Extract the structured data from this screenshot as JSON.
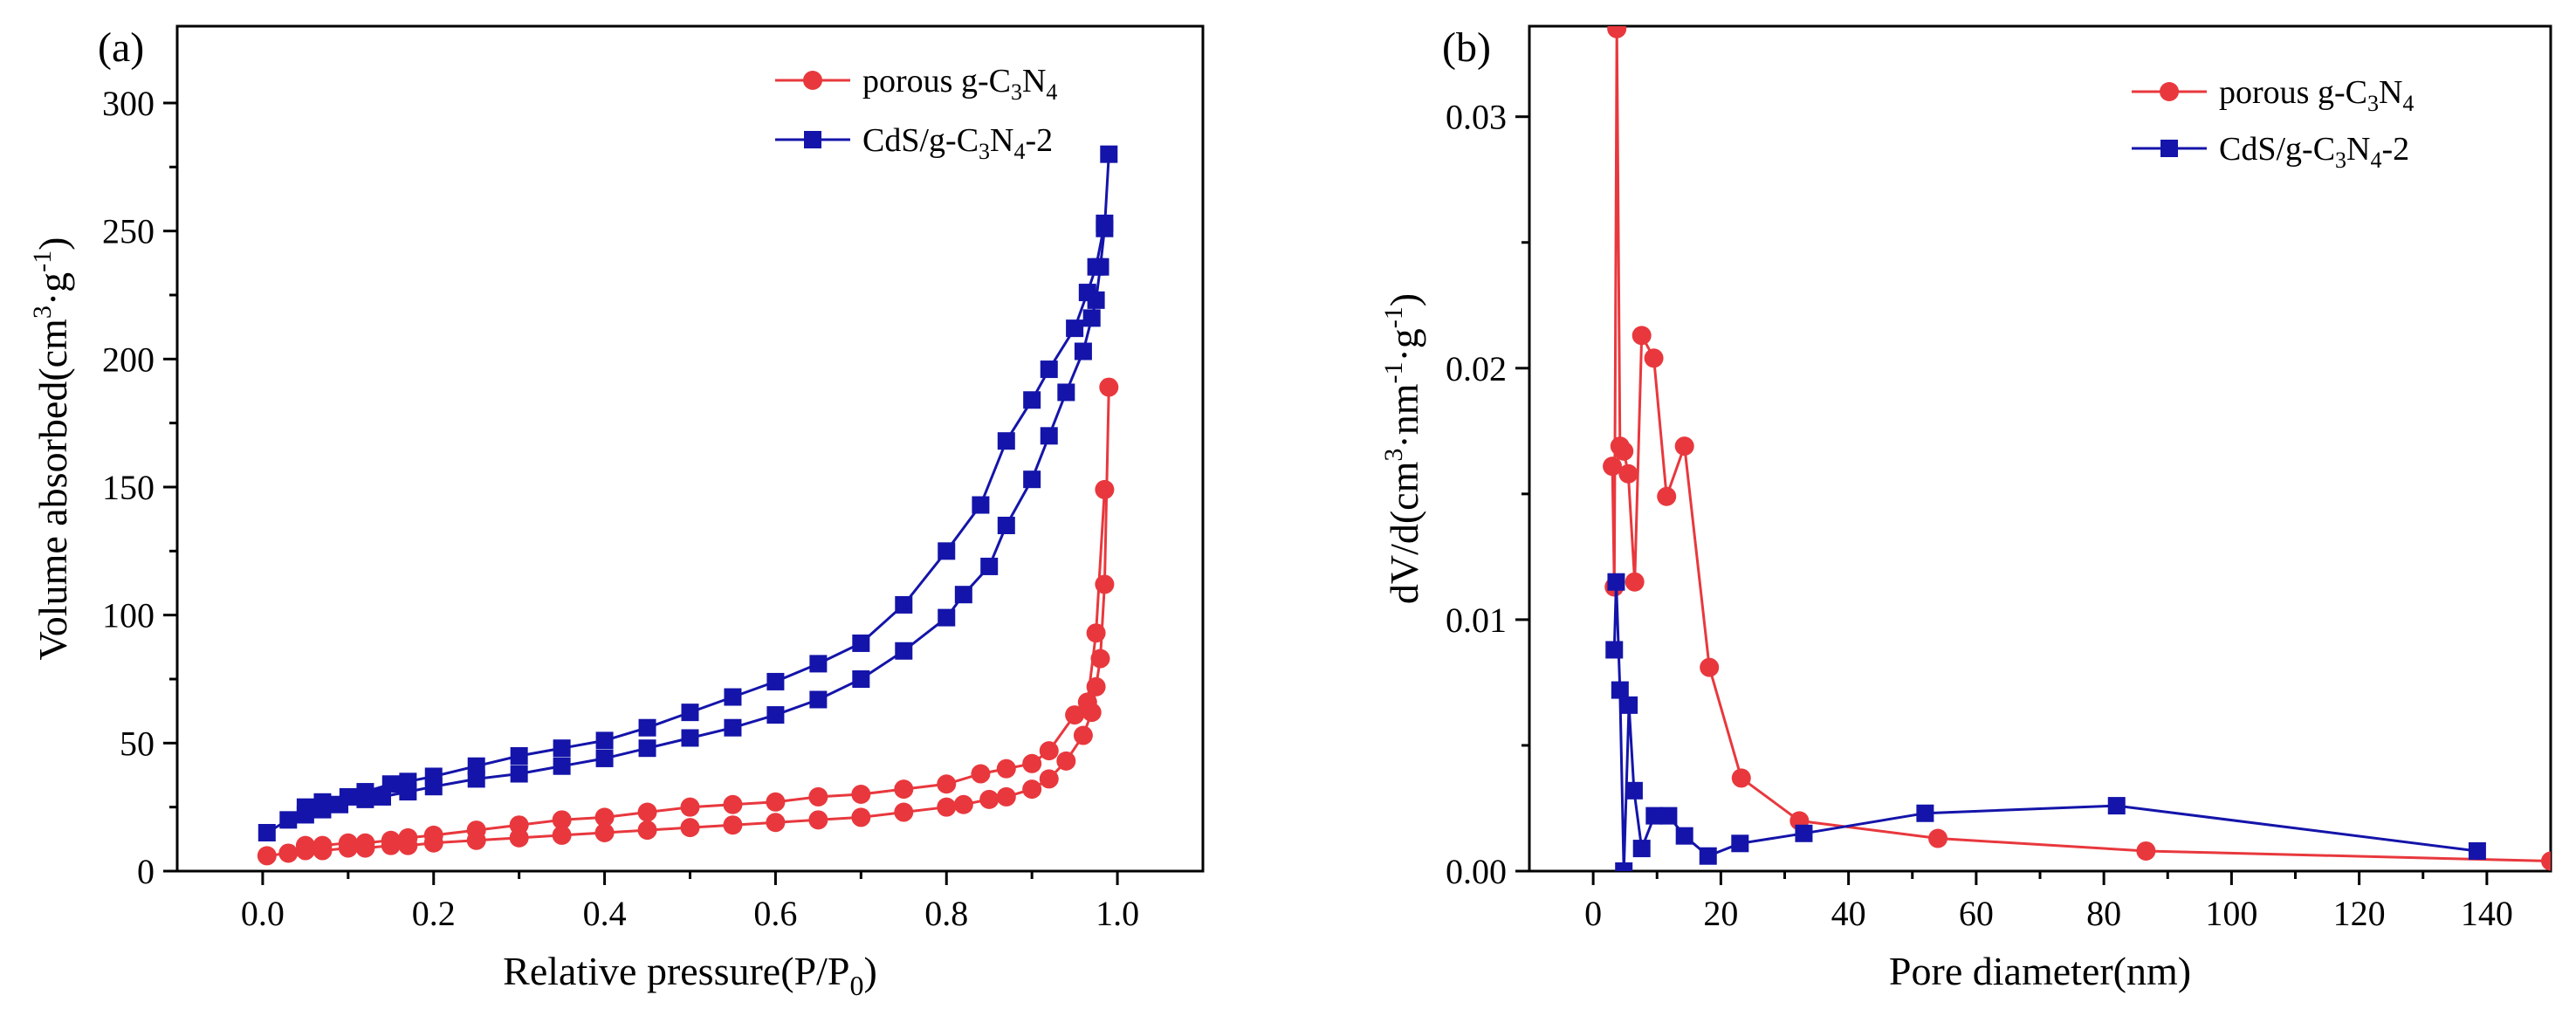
{
  "chart_data": [
    {
      "panel_label": "(a)",
      "type": "line",
      "xlabel": {
        "main": "Relative pressure(P/P",
        "sub": "0",
        "close": ")"
      },
      "ylabel": {
        "p1": "Volume absorbed(cm",
        "sup1": "3",
        "p2": "·g",
        "sup2": "-1",
        "p3": ")"
      },
      "xlim": [
        -0.1,
        1.1
      ],
      "ylim": [
        0,
        330
      ],
      "xticks": [
        0.0,
        0.2,
        0.4,
        0.6,
        0.8,
        1.0
      ],
      "xtick_labels": [
        "0.0",
        "0.2",
        "0.4",
        "0.6",
        "0.8",
        "1.0"
      ],
      "yticks": [
        0,
        50,
        100,
        150,
        200,
        250,
        300
      ],
      "ytick_labels": [
        "0",
        "50",
        "100",
        "150",
        "200",
        "250",
        "300"
      ],
      "legend_position": "top-right",
      "series": [
        {
          "name_parts": {
            "a": "porous g-C",
            "s1": "3",
            "b": "N",
            "s2": "4",
            "c": ""
          },
          "color": "#e8383d",
          "marker": "circle",
          "segments": [
            {
              "x": [
                0.005,
                0.03,
                0.05,
                0.07,
                0.1,
                0.12,
                0.15,
                0.17,
                0.2,
                0.25,
                0.3,
                0.35,
                0.4,
                0.45,
                0.5,
                0.55,
                0.6,
                0.65,
                0.7,
                0.75,
                0.8,
                0.82,
                0.85,
                0.87,
                0.9,
                0.92,
                0.94,
                0.96,
                0.97,
                0.975,
                0.98,
                0.985,
                0.99
              ],
              "y": [
                6,
                7,
                8,
                8,
                9,
                9,
                10,
                10,
                11,
                12,
                13,
                14,
                15,
                16,
                17,
                18,
                19,
                20,
                21,
                23,
                25,
                26,
                28,
                29,
                32,
                36,
                43,
                53,
                62,
                72,
                83,
                112,
                189
              ]
            },
            {
              "x": [
                0.985,
                0.975,
                0.965,
                0.95,
                0.92,
                0.9,
                0.87,
                0.84,
                0.8,
                0.75,
                0.7,
                0.65,
                0.6,
                0.55,
                0.5,
                0.45,
                0.4,
                0.35,
                0.3,
                0.25,
                0.2,
                0.17,
                0.15,
                0.12,
                0.1,
                0.07,
                0.05
              ],
              "y": [
                149,
                93,
                66,
                61,
                47,
                42,
                40,
                38,
                34,
                32,
                30,
                29,
                27,
                26,
                25,
                23,
                21,
                20,
                18,
                16,
                14,
                13,
                12,
                11,
                11,
                10,
                10
              ]
            }
          ]
        },
        {
          "name_parts": {
            "a": "CdS/g-C",
            "s1": "3",
            "b": "N",
            "s2": "4",
            "c": "-2"
          },
          "color": "#1414aa",
          "marker": "square",
          "segments": [
            {
              "x": [
                0.005,
                0.03,
                0.05,
                0.07,
                0.09,
                0.12,
                0.14,
                0.17,
                0.2,
                0.25,
                0.3,
                0.35,
                0.4,
                0.45,
                0.5,
                0.55,
                0.6,
                0.65,
                0.7,
                0.75,
                0.8,
                0.82,
                0.85,
                0.87,
                0.9,
                0.92,
                0.94,
                0.96,
                0.97,
                0.975,
                0.98,
                0.985,
                0.99
              ],
              "y": [
                15,
                20,
                22,
                24,
                26,
                28,
                29,
                31,
                33,
                36,
                38,
                41,
                44,
                48,
                52,
                56,
                61,
                67,
                75,
                86,
                99,
                108,
                119,
                135,
                153,
                170,
                187,
                203,
                216,
                223,
                236,
                251,
                280
              ]
            },
            {
              "x": [
                0.985,
                0.975,
                0.965,
                0.95,
                0.92,
                0.9,
                0.87,
                0.84,
                0.8,
                0.75,
                0.7,
                0.65,
                0.6,
                0.55,
                0.5,
                0.45,
                0.4,
                0.35,
                0.3,
                0.25,
                0.2,
                0.17,
                0.15,
                0.12,
                0.1,
                0.07,
                0.05
              ],
              "y": [
                253,
                236,
                226,
                212,
                196,
                184,
                168,
                143,
                125,
                104,
                89,
                81,
                74,
                68,
                62,
                56,
                51,
                48,
                45,
                41,
                37,
                35,
                34,
                31,
                29,
                27,
                25
              ]
            }
          ]
        }
      ]
    },
    {
      "panel_label": "(b)",
      "type": "line",
      "xlabel": {
        "main": "Pore diameter(nm)"
      },
      "ylabel": {
        "p1": "dV/d(cm",
        "sup1": "3",
        "p2": "·nm",
        "sup2": "-1",
        "p3": "·g",
        "sup3": "-1",
        "p4": ")"
      },
      "xlim": [
        -10,
        150
      ],
      "ylim": [
        0,
        0.0336
      ],
      "xticks": [
        0,
        20,
        40,
        60,
        80,
        100,
        120,
        140
      ],
      "xtick_labels": [
        "0",
        "20",
        "40",
        "60",
        "80",
        "100",
        "120",
        "140"
      ],
      "yticks": [
        0,
        0.01,
        0.02,
        0.03
      ],
      "ytick_labels": [
        "0.00",
        "0.01",
        "0.02",
        "0.03"
      ],
      "legend_position": "top-right",
      "series": [
        {
          "name_parts": {
            "a": "porous g-C",
            "s1": "3",
            "b": "N",
            "s2": "4",
            "c": ""
          },
          "color": "#e8383d",
          "marker": "circle",
          "segments": [
            {
              "x": [
                3.0,
                3.3,
                3.7,
                4.2,
                4.8,
                5.5,
                6.5,
                7.6,
                9.5,
                11.5,
                14.3,
                18.2,
                23.2,
                32.3,
                54.0,
                86.6,
                150
              ],
              "y": [
                0.0161,
                0.0113,
                0.0335,
                0.0169,
                0.0167,
                0.0158,
                0.0115,
                0.0213,
                0.0204,
                0.0149,
                0.0169,
                0.0081,
                0.0037,
                0.002,
                0.0013,
                0.0008,
                0.0004
              ]
            }
          ]
        },
        {
          "name_parts": {
            "a": "CdS/g-C",
            "s1": "3",
            "b": "N",
            "s2": "4",
            "c": "-2"
          },
          "color": "#1414aa",
          "marker": "square",
          "segments": [
            {
              "x": [
                3.3,
                3.6,
                4.2,
                4.8,
                5.6,
                6.4,
                7.6,
                9.6,
                11.8,
                14.3,
                18.0,
                23.0,
                33.0,
                52.0,
                82.0,
                138.5
              ],
              "y": [
                0.0088,
                0.0115,
                0.0072,
                0.0,
                0.0066,
                0.0032,
                0.0009,
                0.0022,
                0.0022,
                0.0014,
                0.0006,
                0.0011,
                0.0015,
                0.0023,
                0.0026,
                0.0008
              ]
            }
          ]
        }
      ]
    }
  ]
}
